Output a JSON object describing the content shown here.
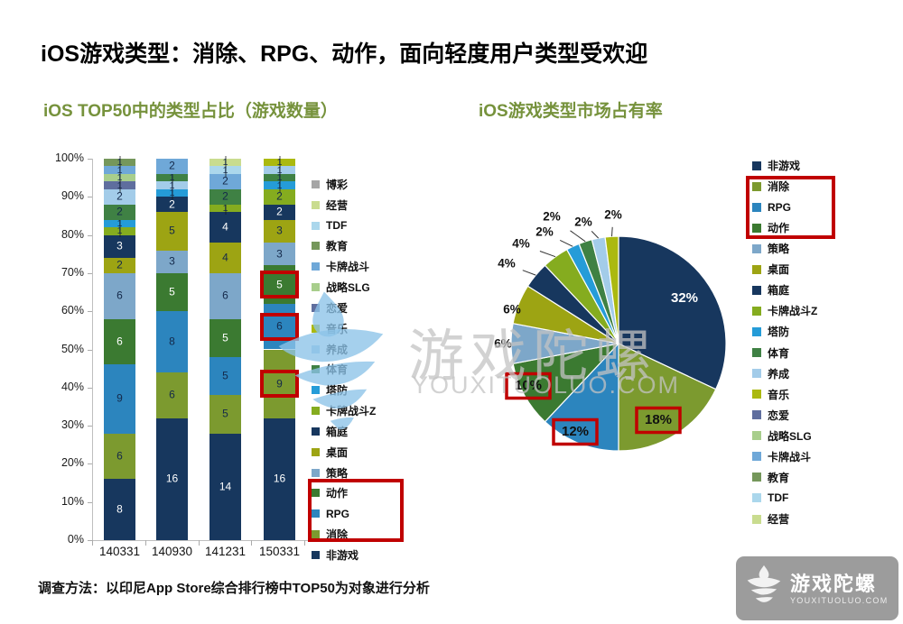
{
  "slide": {
    "title": "iOS游戏类型：消除、RPG、动作，面向轻度用户类型受欢迎",
    "footnote": "调查方法：以印尼App Store综合排行榜中TOP50为对象进行分析",
    "accent_red": "#C00000"
  },
  "palette": {
    "非游戏": "#17375E",
    "消除": "#7C9A2F",
    "RPG": "#2C85BE",
    "动作": "#3B7A31",
    "策略": "#7DA7C9",
    "桌面": "#9DA413",
    "箱庭": "#17375E",
    "卡牌战斗Z": "#85AC1F",
    "塔防": "#259CD8",
    "体育": "#3F8144",
    "养成": "#A3CCE9",
    "音乐": "#ABB90F",
    "恋爱": "#5F6E9E",
    "战略SLG": "#A8CE8C",
    "卡牌战斗": "#6FA8D8",
    "教育": "#75975B",
    "TDF": "#ABD7EC",
    "经营": "#C9DC8F",
    "博彩": "#A6A6A6"
  },
  "chart_data": [
    {
      "type": "bar",
      "stacked": true,
      "title": "iOS TOP50中的类型占比（游戏数量）",
      "xlabel": "",
      "ylabel": "",
      "ylim": [
        0,
        100
      ],
      "yticks": [
        0,
        10,
        20,
        30,
        40,
        50,
        60,
        70,
        80,
        90,
        100
      ],
      "ytick_suffix": "%",
      "total_per_bar": 50,
      "categories": [
        "140331",
        "140930",
        "141231",
        "150331"
      ],
      "white_label_series": [
        "非游戏",
        "箱庭",
        "动作"
      ],
      "legend": [
        "博彩",
        "经营",
        "TDF",
        "教育",
        "卡牌战斗",
        "战略SLG",
        "恋爱",
        "音乐",
        "养成",
        "体育",
        "塔防",
        "卡牌战斗Z",
        "箱庭",
        "桌面",
        "策略",
        "动作",
        "RPG",
        "消除",
        "非游戏"
      ],
      "legend_highlight": [
        "动作",
        "RPG",
        "消除"
      ],
      "bars": [
        {
          "category": "140331",
          "segments": [
            {
              "name": "非游戏",
              "value": 8
            },
            {
              "name": "消除",
              "value": 6
            },
            {
              "name": "RPG",
              "value": 9
            },
            {
              "name": "动作",
              "value": 6
            },
            {
              "name": "策略",
              "value": 6
            },
            {
              "name": "桌面",
              "value": 2
            },
            {
              "name": "箱庭",
              "value": 3
            },
            {
              "name": "卡牌战斗Z",
              "value": 1
            },
            {
              "name": "塔防",
              "value": 1
            },
            {
              "name": "体育",
              "value": 2
            },
            {
              "name": "养成",
              "value": 2
            },
            {
              "name": "恋爱",
              "value": 1
            },
            {
              "name": "战略SLG",
              "value": 1
            },
            {
              "name": "卡牌战斗",
              "value": 1
            },
            {
              "name": "教育",
              "value": 1
            }
          ]
        },
        {
          "category": "140930",
          "segments": [
            {
              "name": "非游戏",
              "value": 16
            },
            {
              "name": "消除",
              "value": 6
            },
            {
              "name": "RPG",
              "value": 8
            },
            {
              "name": "动作",
              "value": 5
            },
            {
              "name": "策略",
              "value": 3
            },
            {
              "name": "桌面",
              "value": 5
            },
            {
              "name": "箱庭",
              "value": 2
            },
            {
              "name": "塔防",
              "value": 1
            },
            {
              "name": "养成",
              "value": 1
            },
            {
              "name": "体育",
              "value": 1
            },
            {
              "name": "卡牌战斗",
              "value": 2
            }
          ]
        },
        {
          "category": "141231",
          "segments": [
            {
              "name": "非游戏",
              "value": 14
            },
            {
              "name": "消除",
              "value": 5
            },
            {
              "name": "RPG",
              "value": 5
            },
            {
              "name": "动作",
              "value": 5
            },
            {
              "name": "策略",
              "value": 6
            },
            {
              "name": "桌面",
              "value": 4
            },
            {
              "name": "箱庭",
              "value": 4
            },
            {
              "name": "卡牌战斗Z",
              "value": 1
            },
            {
              "name": "体育",
              "value": 2
            },
            {
              "name": "卡牌战斗",
              "value": 2
            },
            {
              "name": "TDF",
              "value": 1
            },
            {
              "name": "经营",
              "value": 1
            }
          ]
        },
        {
          "category": "150331",
          "segments": [
            {
              "name": "非游戏",
              "value": 16
            },
            {
              "name": "消除",
              "value": 9,
              "highlight": true
            },
            {
              "name": "RPG",
              "value": 6,
              "highlight": true
            },
            {
              "name": "动作",
              "value": 5,
              "highlight": true
            },
            {
              "name": "策略",
              "value": 3
            },
            {
              "name": "桌面",
              "value": 3
            },
            {
              "name": "箱庭",
              "value": 2
            },
            {
              "name": "卡牌战斗Z",
              "value": 2
            },
            {
              "name": "塔防",
              "value": 1
            },
            {
              "name": "体育",
              "value": 1
            },
            {
              "name": "养成",
              "value": 1
            },
            {
              "name": "音乐",
              "value": 1
            }
          ]
        }
      ]
    },
    {
      "type": "pie",
      "title": "iOS游戏类型市场占有率",
      "start_angle_deg": 0,
      "direction": "clockwise",
      "slices": [
        {
          "name": "非游戏",
          "value": 32,
          "label": "32%",
          "label_color": "#FFFFFF"
        },
        {
          "name": "消除",
          "value": 18,
          "label": "18%",
          "highlight": true
        },
        {
          "name": "RPG",
          "value": 12,
          "label": "12%",
          "highlight": true
        },
        {
          "name": "动作",
          "value": 10,
          "label": "10%",
          "highlight": true
        },
        {
          "name": "策略",
          "value": 6,
          "label": "6%"
        },
        {
          "name": "桌面",
          "value": 6,
          "label": "6%"
        },
        {
          "name": "箱庭",
          "value": 4,
          "label": "4%",
          "leader": true
        },
        {
          "name": "卡牌战斗Z",
          "value": 4,
          "label": "4%",
          "leader": true
        },
        {
          "name": "塔防",
          "value": 2,
          "label": "2%",
          "leader": true
        },
        {
          "name": "体育",
          "value": 2,
          "label": "2%",
          "leader": true
        },
        {
          "name": "养成",
          "value": 2,
          "label": "2%",
          "leader": true
        },
        {
          "name": "音乐",
          "value": 2,
          "label": "2%",
          "leader": true
        }
      ],
      "legend": [
        "非游戏",
        "消除",
        "RPG",
        "动作",
        "策略",
        "桌面",
        "箱庭",
        "卡牌战斗Z",
        "塔防",
        "体育",
        "养成",
        "音乐",
        "恋爱",
        "战略SLG",
        "卡牌战斗",
        "教育",
        "TDF",
        "经营"
      ],
      "legend_highlight": [
        "消除",
        "RPG",
        "动作"
      ]
    }
  ],
  "watermark": {
    "text_cn": "游戏陀螺",
    "text_en": "YOUXITUOLUO.COM"
  },
  "logo": {
    "text_cn": "游戏陀螺",
    "text_en": "YOUXITUOLUO.COM"
  }
}
